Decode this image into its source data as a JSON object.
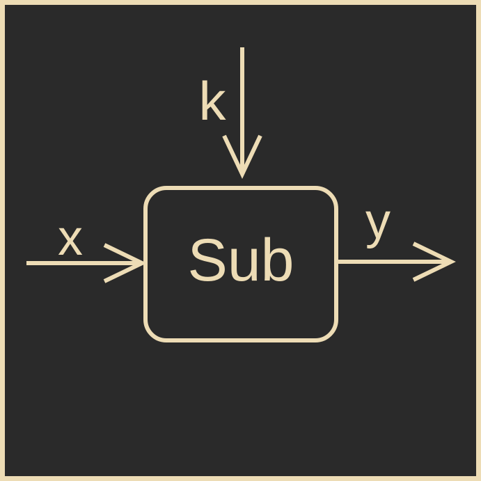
{
  "theme": {
    "background": "#2a2a2a",
    "stroke": "#eddcb5"
  },
  "block": {
    "label": "Sub"
  },
  "ports": {
    "input_x": "x",
    "input_k": "k",
    "output_y": "y"
  }
}
